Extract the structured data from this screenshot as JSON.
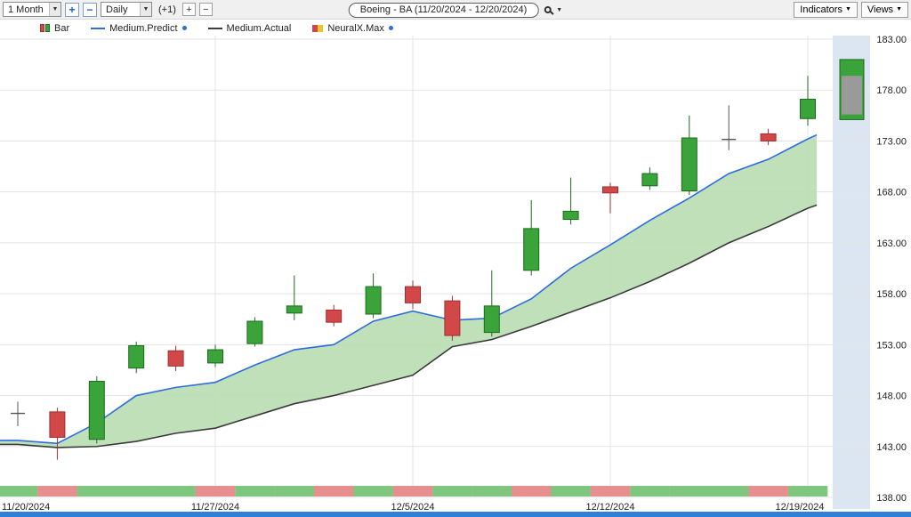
{
  "toolbar": {
    "range_value": "1 Month",
    "zoom_in_label": "+",
    "zoom_out_label": "−",
    "period_value": "Daily",
    "bar_adjust_label": "(+1)",
    "bar_plus_label": "+",
    "bar_minus_label": "−",
    "symbol_title": "Boeing - BA (11/20/2024 - 12/20/2024)",
    "indicators_label": "Indicators",
    "views_label": "Views"
  },
  "legend": {
    "bar_label": "Bar",
    "predict_label": "Medium.Predict",
    "actual_label": "Medium.Actual",
    "neuralx_label": "NeuralX.Max"
  },
  "colors": {
    "up": "#3aa33a",
    "up_border": "#1d6b1d",
    "down": "#d24848",
    "down_border": "#9e2f2f",
    "predict_line": "#2d6ce0",
    "actual_line": "#3a3a3a",
    "band_fill": "#b9ddb1",
    "future_zone": "#dce6f3",
    "strip_up": "#7fc67f",
    "strip_down": "#e78f8f",
    "grid": "#e3e3e3",
    "forecast_inner": "#9a9a9a",
    "axis_text": "#222222",
    "scrollbar": "#2f80d8",
    "doji": "#555555"
  },
  "chart_data": {
    "type": "candlestick",
    "title": "Boeing - BA (11/20/2024 - 12/20/2024)",
    "symbol": "BA",
    "ylim": [
      137.5,
      183.6
    ],
    "y_ticks": [
      183,
      178,
      173,
      168,
      163,
      158,
      153,
      148,
      143,
      138
    ],
    "y_tick_labels": [
      "183.00",
      "178.00",
      "173.00",
      "168.00",
      "163.00",
      "158.00",
      "153.00",
      "148.00",
      "143.00",
      "138.00"
    ],
    "x_tick_labels": [
      "11/20/2024",
      "11/27/2024",
      "12/5/2024",
      "12/12/2024",
      "12/19/2024"
    ],
    "x_tick_indices": [
      0,
      5,
      10,
      15,
      20
    ],
    "candles": [
      {
        "date": "11/20/2024",
        "o": 146.2,
        "h": 147.4,
        "l": 145.0,
        "c": 146.3
      },
      {
        "date": "11/21/2024",
        "o": 146.4,
        "h": 146.8,
        "l": 141.7,
        "c": 143.9
      },
      {
        "date": "11/22/2024",
        "o": 143.7,
        "h": 149.9,
        "l": 143.3,
        "c": 149.4
      },
      {
        "date": "11/25/2024",
        "o": 150.7,
        "h": 153.3,
        "l": 150.2,
        "c": 152.9
      },
      {
        "date": "11/26/2024",
        "o": 152.4,
        "h": 152.9,
        "l": 150.4,
        "c": 150.9
      },
      {
        "date": "11/27/2024",
        "o": 151.2,
        "h": 153.0,
        "l": 150.8,
        "c": 152.5
      },
      {
        "date": "11/29/2024",
        "o": 153.1,
        "h": 155.7,
        "l": 152.8,
        "c": 155.3
      },
      {
        "date": "12/2/2024",
        "o": 156.1,
        "h": 159.8,
        "l": 155.4,
        "c": 156.8
      },
      {
        "date": "12/3/2024",
        "o": 156.4,
        "h": 156.9,
        "l": 154.8,
        "c": 155.2
      },
      {
        "date": "12/4/2024",
        "o": 156.0,
        "h": 160.0,
        "l": 155.6,
        "c": 158.7
      },
      {
        "date": "12/5/2024",
        "o": 158.7,
        "h": 159.3,
        "l": 156.5,
        "c": 157.1
      },
      {
        "date": "12/6/2024",
        "o": 157.3,
        "h": 157.8,
        "l": 153.4,
        "c": 153.9
      },
      {
        "date": "12/9/2024",
        "o": 154.2,
        "h": 160.3,
        "l": 153.8,
        "c": 156.8
      },
      {
        "date": "12/10/2024",
        "o": 160.3,
        "h": 167.2,
        "l": 159.8,
        "c": 164.4
      },
      {
        "date": "12/11/2024",
        "o": 165.3,
        "h": 169.4,
        "l": 164.8,
        "c": 166.1
      },
      {
        "date": "12/12/2024",
        "o": 168.5,
        "h": 168.9,
        "l": 165.9,
        "c": 167.9
      },
      {
        "date": "12/13/2024",
        "o": 168.6,
        "h": 170.4,
        "l": 168.2,
        "c": 169.8
      },
      {
        "date": "12/16/2024",
        "o": 168.1,
        "h": 175.5,
        "l": 167.7,
        "c": 173.3
      },
      {
        "date": "12/17/2024",
        "o": 173.1,
        "h": 176.5,
        "l": 172.1,
        "c": 173.2
      },
      {
        "date": "12/18/2024",
        "o": 173.7,
        "h": 174.2,
        "l": 172.6,
        "c": 173.0
      },
      {
        "date": "12/19/2024",
        "o": 175.2,
        "h": 179.4,
        "l": 174.5,
        "c": 177.1
      }
    ],
    "series": [
      {
        "name": "Medium.Predict",
        "values": [
          143.6,
          143.3,
          145.3,
          148.0,
          148.8,
          149.3,
          151.0,
          152.5,
          153.0,
          155.3,
          156.3,
          155.4,
          155.6,
          157.5,
          160.5,
          162.8,
          165.2,
          167.4,
          169.8,
          171.2,
          173.2
        ]
      },
      {
        "name": "Medium.Actual",
        "values": [
          143.2,
          142.9,
          143.0,
          143.5,
          144.3,
          144.8,
          146.0,
          147.2,
          148.0,
          149.0,
          150.0,
          152.8,
          153.5,
          154.8,
          156.2,
          157.6,
          159.2,
          161.0,
          163.0,
          164.6,
          166.4
        ]
      }
    ],
    "neuralx_colors": [
      "up",
      "down",
      "up",
      "up",
      "up",
      "down",
      "up",
      "up",
      "down",
      "up",
      "down",
      "up",
      "up",
      "down",
      "up",
      "down",
      "up",
      "up",
      "up",
      "down",
      "up"
    ],
    "forecast_bar": {
      "high": 181.0,
      "low": 175.1,
      "inner_high": 179.4,
      "inner_low": 175.6
    }
  }
}
